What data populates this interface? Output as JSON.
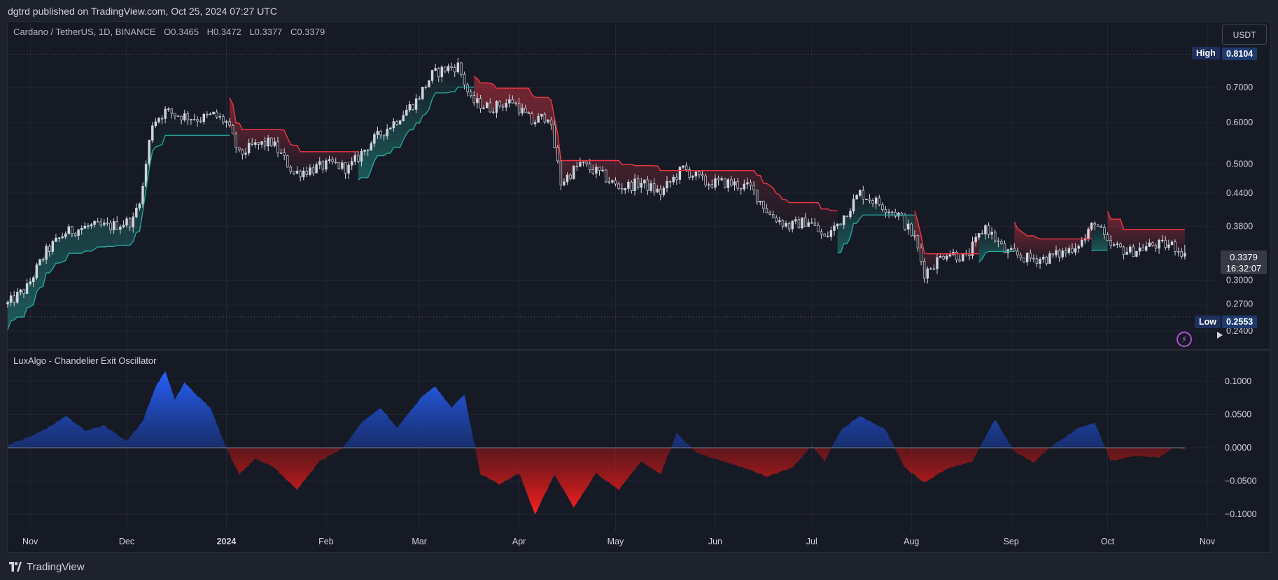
{
  "header": {
    "published_text": "dgtrd published on TradingView.com, Oct 25, 2024 07:27 UTC"
  },
  "legend": {
    "symbol": "Cardano / TetherUS, 1D, BINANCE",
    "open": "O0.3465",
    "high": "H0.3472",
    "low": "L0.3377",
    "close": "C0.3379"
  },
  "currency_button": "USDT",
  "high_marker": {
    "label": "High",
    "value": "0.8104"
  },
  "low_marker": {
    "label": "Low",
    "value": "0.2553"
  },
  "last_price": {
    "value": "0.3379",
    "countdown": "16:32:07"
  },
  "indicator": {
    "title": "LuxAlgo - Chandelier Exit Oscillator"
  },
  "footer": {
    "brand": "TradingView"
  },
  "colors": {
    "background": "#161a25",
    "grid": "#232733",
    "candle": "#d1d4dc",
    "long_stop": "#26a69a",
    "short_stop": "#f23645",
    "osc_positive": "#2962ff",
    "osc_negative": "#f51c1c"
  },
  "chart_data": [
    {
      "type": "candlestick",
      "symbol": "ADAUSDT",
      "timeframe": "1D",
      "x_ticks": [
        "Nov",
        "Dec",
        "2024",
        "Feb",
        "Mar",
        "Apr",
        "May",
        "Jun",
        "Jul",
        "Aug",
        "Sep",
        "Oct",
        "Nov"
      ],
      "y_ticks": [
        "0.7000",
        "0.6000",
        "0.5000",
        "0.4400",
        "0.3800",
        "0.3000",
        "0.2700",
        "0.2400"
      ],
      "y_scale": "log",
      "y_range": [
        0.235,
        0.84
      ],
      "high": 0.8104,
      "low": 0.2553,
      "last": 0.3379,
      "close_path": [
        [
          "2023-10-25",
          0.27
        ],
        [
          "2023-10-31",
          0.29
        ],
        [
          "2023-11-06",
          0.34
        ],
        [
          "2023-11-12",
          0.37
        ],
        [
          "2023-11-19",
          0.38
        ],
        [
          "2023-11-26",
          0.38
        ],
        [
          "2023-12-03",
          0.39
        ],
        [
          "2023-12-06",
          0.45
        ],
        [
          "2023-12-09",
          0.6
        ],
        [
          "2023-12-13",
          0.63
        ],
        [
          "2023-12-17",
          0.62
        ],
        [
          "2023-12-24",
          0.61
        ],
        [
          "2023-12-28",
          0.62
        ],
        [
          "2024-01-01",
          0.6
        ],
        [
          "2024-01-05",
          0.52
        ],
        [
          "2024-01-09",
          0.54
        ],
        [
          "2024-01-15",
          0.55
        ],
        [
          "2024-01-22",
          0.48
        ],
        [
          "2024-01-28",
          0.49
        ],
        [
          "2024-02-03",
          0.5
        ],
        [
          "2024-02-08",
          0.49
        ],
        [
          "2024-02-15",
          0.55
        ],
        [
          "2024-02-22",
          0.6
        ],
        [
          "2024-02-29",
          0.66
        ],
        [
          "2024-03-05",
          0.74
        ],
        [
          "2024-03-09",
          0.76
        ],
        [
          "2024-03-13",
          0.77
        ],
        [
          "2024-03-17",
          0.66
        ],
        [
          "2024-03-23",
          0.64
        ],
        [
          "2024-03-30",
          0.66
        ],
        [
          "2024-04-05",
          0.6
        ],
        [
          "2024-04-10",
          0.62
        ],
        [
          "2024-04-14",
          0.46
        ],
        [
          "2024-04-20",
          0.5
        ],
        [
          "2024-04-26",
          0.48
        ],
        [
          "2024-05-02",
          0.45
        ],
        [
          "2024-05-09",
          0.46
        ],
        [
          "2024-05-15",
          0.44
        ],
        [
          "2024-05-22",
          0.49
        ],
        [
          "2024-05-29",
          0.46
        ],
        [
          "2024-06-05",
          0.46
        ],
        [
          "2024-06-12",
          0.45
        ],
        [
          "2024-06-18",
          0.4
        ],
        [
          "2024-06-24",
          0.38
        ],
        [
          "2024-06-30",
          0.39
        ],
        [
          "2024-07-05",
          0.36
        ],
        [
          "2024-07-10",
          0.39
        ],
        [
          "2024-07-16",
          0.44
        ],
        [
          "2024-07-22",
          0.42
        ],
        [
          "2024-07-28",
          0.4
        ],
        [
          "2024-08-02",
          0.36
        ],
        [
          "2024-08-05",
          0.31
        ],
        [
          "2024-08-12",
          0.34
        ],
        [
          "2024-08-18",
          0.33
        ],
        [
          "2024-08-24",
          0.38
        ],
        [
          "2024-08-30",
          0.34
        ],
        [
          "2024-09-06",
          0.33
        ],
        [
          "2024-09-12",
          0.33
        ],
        [
          "2024-09-18",
          0.34
        ],
        [
          "2024-09-24",
          0.36
        ],
        [
          "2024-09-27",
          0.39
        ],
        [
          "2024-10-01",
          0.35
        ],
        [
          "2024-10-08",
          0.34
        ],
        [
          "2024-10-15",
          0.35
        ],
        [
          "2024-10-21",
          0.35
        ],
        [
          "2024-10-25",
          0.3379
        ]
      ]
    },
    {
      "type": "area",
      "name": "LuxAlgo - Chandelier Exit Oscillator",
      "y_ticks": [
        "0.1000",
        "0.0500",
        "0.0000",
        "−0.0500",
        "−0.1000"
      ],
      "y_range": [
        -0.12,
        0.13
      ],
      "points": [
        [
          "2023-10-25",
          0.004
        ],
        [
          "2023-10-31",
          0.015
        ],
        [
          "2023-11-06",
          0.028
        ],
        [
          "2023-11-12",
          0.048
        ],
        [
          "2023-11-18",
          0.026
        ],
        [
          "2023-11-24",
          0.033
        ],
        [
          "2023-12-01",
          0.01
        ],
        [
          "2023-12-06",
          0.04
        ],
        [
          "2023-12-10",
          0.092
        ],
        [
          "2023-12-13",
          0.115
        ],
        [
          "2023-12-16",
          0.072
        ],
        [
          "2023-12-19",
          0.098
        ],
        [
          "2023-12-23",
          0.078
        ],
        [
          "2023-12-27",
          0.06
        ],
        [
          "2024-01-01",
          0.0
        ],
        [
          "2024-01-05",
          -0.04
        ],
        [
          "2024-01-10",
          -0.016
        ],
        [
          "2024-01-16",
          -0.03
        ],
        [
          "2024-01-23",
          -0.063
        ],
        [
          "2024-01-30",
          -0.02
        ],
        [
          "2024-02-06",
          -0.002
        ],
        [
          "2024-02-12",
          0.038
        ],
        [
          "2024-02-18",
          0.06
        ],
        [
          "2024-02-23",
          0.03
        ],
        [
          "2024-03-02",
          0.078
        ],
        [
          "2024-03-06",
          0.092
        ],
        [
          "2024-03-11",
          0.06
        ],
        [
          "2024-03-15",
          0.08
        ],
        [
          "2024-03-20",
          -0.04
        ],
        [
          "2024-03-26",
          -0.055
        ],
        [
          "2024-04-01",
          -0.038
        ],
        [
          "2024-04-06",
          -0.1
        ],
        [
          "2024-04-12",
          -0.04
        ],
        [
          "2024-04-18",
          -0.09
        ],
        [
          "2024-04-25",
          -0.038
        ],
        [
          "2024-05-02",
          -0.063
        ],
        [
          "2024-05-09",
          -0.02
        ],
        [
          "2024-05-15",
          -0.04
        ],
        [
          "2024-05-20",
          0.022
        ],
        [
          "2024-05-26",
          -0.007
        ],
        [
          "2024-06-02",
          -0.018
        ],
        [
          "2024-06-10",
          -0.03
        ],
        [
          "2024-06-17",
          -0.043
        ],
        [
          "2024-06-25",
          -0.03
        ],
        [
          "2024-07-01",
          0.003
        ],
        [
          "2024-07-05",
          -0.02
        ],
        [
          "2024-07-10",
          0.026
        ],
        [
          "2024-07-16",
          0.048
        ],
        [
          "2024-07-24",
          0.027
        ],
        [
          "2024-07-30",
          -0.03
        ],
        [
          "2024-08-05",
          -0.052
        ],
        [
          "2024-08-12",
          -0.032
        ],
        [
          "2024-08-20",
          -0.02
        ],
        [
          "2024-08-27",
          0.043
        ],
        [
          "2024-09-02",
          -0.006
        ],
        [
          "2024-09-08",
          -0.022
        ],
        [
          "2024-09-14",
          0.004
        ],
        [
          "2024-09-22",
          0.03
        ],
        [
          "2024-09-27",
          0.038
        ],
        [
          "2024-10-02",
          -0.02
        ],
        [
          "2024-10-10",
          -0.012
        ],
        [
          "2024-10-17",
          -0.015
        ],
        [
          "2024-10-22",
          0.002
        ],
        [
          "2024-10-25",
          -0.003
        ]
      ]
    }
  ]
}
